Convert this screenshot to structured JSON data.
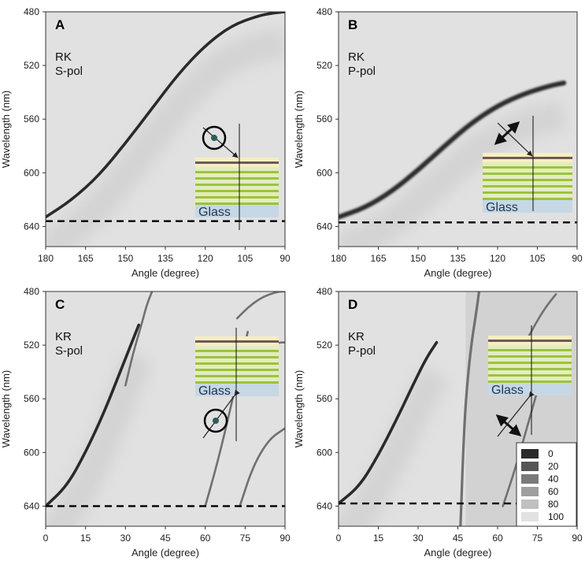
{
  "chart_data": [
    {
      "type": "heatmap",
      "panel_label": "A",
      "annotation": [
        "RK",
        "S-pol"
      ],
      "xlabel": "Angle (degree)",
      "ylabel": "Wavelength (nm)",
      "xlim": [
        180,
        90
      ],
      "ylim": [
        480,
        655
      ],
      "x_ticks": [
        "180",
        "165",
        "150",
        "135",
        "120",
        "105",
        "90"
      ],
      "y_ticks": [
        "480",
        "520",
        "560",
        "600",
        "640"
      ],
      "dashed_line_wavelength": 636,
      "polarization": "s",
      "inset_label": "Glass",
      "dispersion_curves": [
        {
          "x": [
            180,
            170,
            160,
            150,
            140,
            130,
            120,
            110,
            100,
            95,
            90
          ],
          "y": [
            633,
            620,
            602,
            578,
            552,
            526,
            505,
            490,
            483,
            481,
            480
          ]
        }
      ]
    },
    {
      "type": "heatmap",
      "panel_label": "B",
      "annotation": [
        "RK",
        "P-pol"
      ],
      "xlabel": "Angle (degree)",
      "ylabel": "Wavelength (nm)",
      "xlim": [
        180,
        90
      ],
      "ylim": [
        480,
        655
      ],
      "x_ticks": [
        "180",
        "165",
        "150",
        "135",
        "120",
        "105",
        "90"
      ],
      "y_ticks": [
        "480",
        "520",
        "560",
        "600",
        "640"
      ],
      "dashed_line_wavelength": 637,
      "polarization": "p",
      "inset_label": "Glass",
      "dispersion_curves": [
        {
          "x": [
            180,
            170,
            160,
            150,
            140,
            130,
            120,
            110,
            100,
            95
          ],
          "y": [
            633,
            626,
            614,
            598,
            580,
            563,
            550,
            541,
            535,
            533
          ]
        }
      ]
    },
    {
      "type": "heatmap",
      "panel_label": "C",
      "annotation": [
        "KR",
        "S-pol"
      ],
      "xlabel": "Angle (degree)",
      "ylabel": "Wavelength (nm)",
      "xlim": [
        0,
        90
      ],
      "ylim": [
        480,
        655
      ],
      "x_ticks": [
        "0",
        "15",
        "30",
        "45",
        "60",
        "75",
        "90"
      ],
      "y_ticks": [
        "480",
        "520",
        "560",
        "600",
        "640"
      ],
      "dashed_line_wavelength": 640,
      "polarization": "s",
      "inset_label": "Glass",
      "dispersion_curves": [
        {
          "x": [
            0,
            8,
            15,
            22,
            28,
            32,
            35
          ],
          "y": [
            640,
            625,
            600,
            570,
            540,
            520,
            505
          ]
        },
        {
          "x": [
            30,
            33,
            36,
            38,
            40
          ],
          "y": [
            550,
            525,
            505,
            490,
            480
          ]
        },
        {
          "x": [
            60,
            64,
            68,
            72,
            76
          ],
          "y": [
            640,
            612,
            580,
            545,
            510
          ]
        },
        {
          "x": [
            72,
            76,
            80,
            84,
            88,
            90
          ],
          "y": [
            500,
            492,
            486,
            482,
            480,
            480
          ]
        },
        {
          "x": [
            80,
            84,
            88,
            90
          ],
          "y": [
            525,
            520,
            518,
            518
          ]
        },
        {
          "x": [
            73,
            78,
            84,
            90
          ],
          "y": [
            640,
            610,
            590,
            582
          ]
        }
      ]
    },
    {
      "type": "heatmap",
      "panel_label": "D",
      "annotation": [
        "KR",
        "P-pol"
      ],
      "xlabel": "Angle (degree)",
      "ylabel": "Wavelength (nm)",
      "xlim": [
        0,
        90
      ],
      "ylim": [
        480,
        655
      ],
      "x_ticks": [
        "0",
        "15",
        "30",
        "45",
        "60",
        "75",
        "90"
      ],
      "y_ticks": [
        "480",
        "520",
        "560",
        "600",
        "640"
      ],
      "dashed_line_wavelength": 638,
      "polarization": "p",
      "inset_label": "Glass",
      "legend": {
        "position": "bottom-right",
        "levels": [
          "0",
          "20",
          "40",
          "60",
          "80",
          "100"
        ],
        "colors": [
          "#2b2b2b",
          "#555555",
          "#7a7a7a",
          "#9e9e9e",
          "#c0c0c0",
          "#e2e2e2"
        ]
      },
      "dispersion_curves": [
        {
          "x": [
            0,
            8,
            15,
            22,
            28,
            33,
            37
          ],
          "y": [
            638,
            625,
            602,
            575,
            550,
            530,
            518
          ]
        },
        {
          "x": [
            46,
            47,
            48,
            50,
            52,
            53
          ],
          "y": [
            655,
            600,
            560,
            520,
            495,
            480
          ]
        },
        {
          "x": [
            62,
            67,
            72,
            77
          ],
          "y": [
            640,
            610,
            575,
            540
          ]
        },
        {
          "x": [
            70,
            74,
            78,
            82
          ],
          "y": [
            520,
            505,
            492,
            482
          ]
        }
      ]
    }
  ]
}
